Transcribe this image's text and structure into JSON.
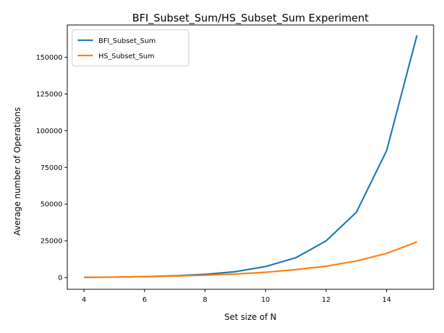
{
  "chart_data": {
    "type": "line",
    "title": "BFI_Subset_Sum/HS_Subset_Sum Experiment",
    "xlabel": "Set size of N",
    "ylabel": "Average number of Operations",
    "x": [
      4,
      5,
      6,
      7,
      8,
      9,
      10,
      11,
      12,
      13,
      14,
      15
    ],
    "xlim": [
      3.45,
      15.55
    ],
    "ylim": [
      -8000,
      172000
    ],
    "xticks": [
      4,
      6,
      8,
      10,
      12,
      14
    ],
    "yticks": [
      0,
      25000,
      50000,
      75000,
      100000,
      125000,
      150000
    ],
    "grid": false,
    "legend": "upper left",
    "series": [
      {
        "name": "BFI_Subset_Sum",
        "color": "#1f77b4",
        "values": [
          120,
          300,
          650,
          1200,
          2200,
          4000,
          7500,
          13500,
          25000,
          44500,
          86500,
          165000
        ]
      },
      {
        "name": "HS_Subset_Sum",
        "color": "#ff7f0e",
        "values": [
          150,
          300,
          550,
          1000,
          1600,
          2400,
          3600,
          5400,
          7700,
          11300,
          16500,
          24200
        ]
      }
    ]
  }
}
